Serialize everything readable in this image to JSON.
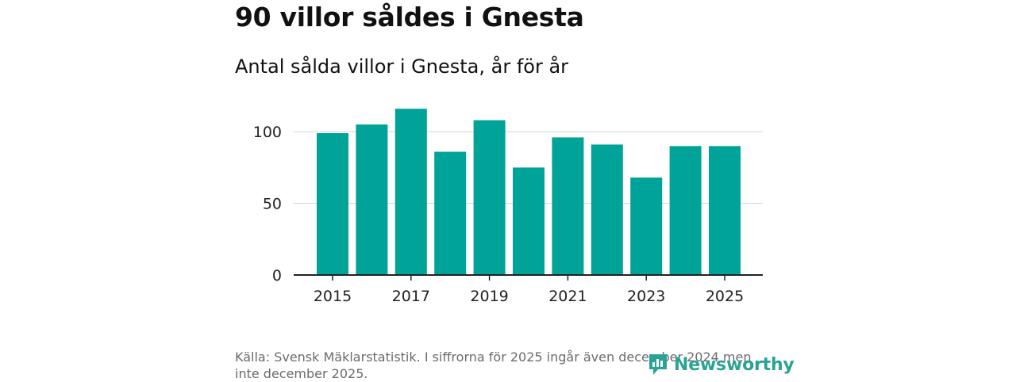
{
  "title": "90 villor såldes i Gnesta",
  "subtitle": "Antal sålda villor i Gnesta, år för år",
  "source": "Källa: Svensk Mäklarstatistik. I siffrorna för 2025 ingår även december 2024 men inte december 2025.",
  "brand": {
    "name": "Newsworthy",
    "color": "#2aa395"
  },
  "colors": {
    "bar": "#00a398",
    "grid": "#d9d9d9",
    "axis": "#222222"
  },
  "chart_data": {
    "type": "bar",
    "title": "Antal sålda villor i Gnesta, år för år",
    "xlabel": "",
    "ylabel": "",
    "categories": [
      "2015",
      "2016",
      "2017",
      "2018",
      "2019",
      "2020",
      "2021",
      "2022",
      "2023",
      "2024",
      "2025"
    ],
    "values": [
      99,
      105,
      116,
      86,
      108,
      75,
      96,
      91,
      68,
      90,
      90
    ],
    "x_tick_labels": [
      "2015",
      "2017",
      "2019",
      "2021",
      "2023",
      "2025"
    ],
    "y_ticks": [
      0,
      50,
      100
    ],
    "y_tick_labels": [
      "0",
      "50",
      "100"
    ],
    "ylim": [
      0,
      120
    ],
    "grid": true
  }
}
